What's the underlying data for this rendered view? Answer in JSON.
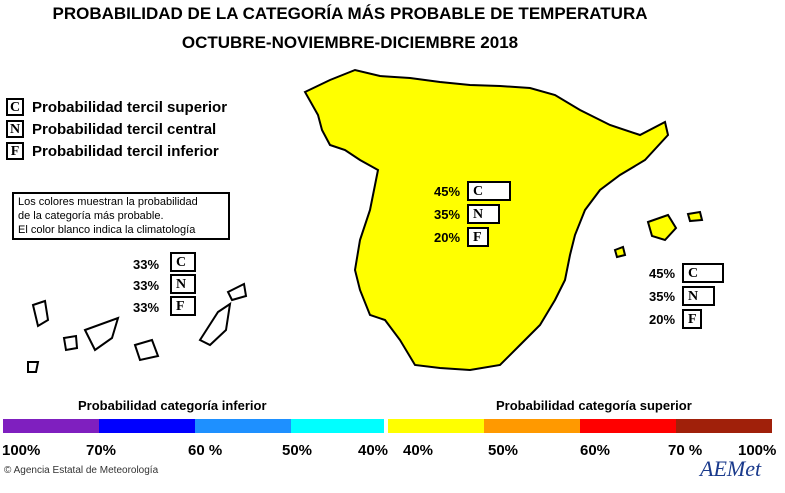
{
  "title_line1": "PROBABILIDAD DE LA CATEGORÍA MÁS PROBABLE DE  TEMPERATURA",
  "title_line2": "OCTUBRE-NOVIEMBRE-DICIEMBRE 2018",
  "legend": [
    {
      "letter": "C",
      "label": "Probabilidad  tercil superior"
    },
    {
      "letter": "N",
      "label": "Probabilidad  tercil central"
    },
    {
      "letter": "F",
      "label": "Probabilidad  tercil inferior"
    }
  ],
  "note": [
    "Los colores muestran la probabilidad",
    "de la categoría más probable.",
    "El color blanco indica la climatología"
  ],
  "regions": {
    "peninsula": {
      "c": "45%",
      "n": "35%",
      "f": "20%",
      "fill": "#ffff00"
    },
    "baleares": {
      "c": "45%",
      "n": "35%",
      "f": "20%",
      "fill": "#ffff00"
    },
    "canarias": {
      "c": "33%",
      "n": "33%",
      "f": "33%",
      "fill": "#ffffff"
    }
  },
  "scale": {
    "inferior_label": "Probabilidad categoría inferior",
    "superior_label": "Probabilidad categoría superior",
    "ticks": [
      "100%",
      "70%",
      "60 %",
      "50%",
      "40%",
      "40%",
      "50%",
      "60%",
      "70 %",
      "100%"
    ],
    "colors": [
      "#7f1fbf",
      "#0000ff",
      "#1e90ff",
      "#00ffff",
      "#ffff00",
      "#ff9900",
      "#ff0000",
      "#a0200a"
    ]
  },
  "credit": "Agencia Estatal de Meteorología",
  "logo": "AEMet"
}
